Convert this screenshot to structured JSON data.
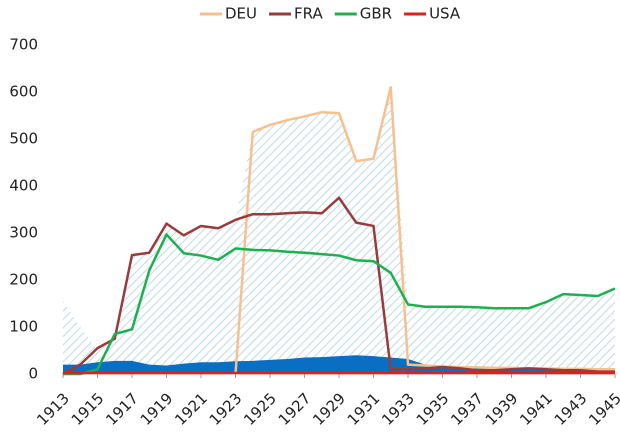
{
  "chart_data": {
    "type": "line",
    "x": [
      1913,
      1914,
      1915,
      1916,
      1917,
      1918,
      1919,
      1920,
      1921,
      1922,
      1923,
      1924,
      1925,
      1926,
      1927,
      1928,
      1929,
      1930,
      1931,
      1932,
      1933,
      1934,
      1935,
      1936,
      1937,
      1938,
      1939,
      1940,
      1941,
      1942,
      1943,
      1944,
      1945
    ],
    "xlim": [
      1913,
      1945
    ],
    "xticks": [
      1913,
      1915,
      1917,
      1919,
      1921,
      1923,
      1925,
      1927,
      1929,
      1931,
      1933,
      1935,
      1937,
      1939,
      1941,
      1943,
      1945
    ],
    "ylim": [
      0,
      700
    ],
    "yticks": [
      0,
      100,
      200,
      300,
      400,
      500,
      600,
      700
    ],
    "legend": "top",
    "areas": [
      {
        "color": "#bcd9e8",
        "pattern": "hatch",
        "values": [
          155,
          100,
          50,
          85,
          253,
          258,
          320,
          295,
          315,
          310,
          328,
          515,
          530,
          540,
          548,
          557,
          555,
          453,
          458,
          610,
          148,
          143,
          143,
          143,
          142,
          140,
          140,
          140,
          153,
          170,
          168,
          166,
          182
        ]
      },
      {
        "color": "#0a6fc2",
        "values": [
          20,
          20,
          25,
          28,
          28,
          20,
          18,
          22,
          25,
          25,
          27,
          28,
          30,
          32,
          35,
          36,
          38,
          40,
          38,
          35,
          32,
          20,
          18,
          15,
          14,
          12,
          12,
          12,
          12,
          10,
          10,
          8,
          8
        ]
      }
    ],
    "series": [
      {
        "name": "DEU",
        "color": "#f8c08e",
        "values": [
          null,
          null,
          null,
          null,
          null,
          null,
          null,
          null,
          null,
          null,
          0,
          515,
          530,
          540,
          548,
          557,
          555,
          453,
          458,
          610,
          20,
          18,
          16,
          15,
          14,
          13,
          13,
          12,
          12,
          11,
          11,
          10,
          10
        ]
      },
      {
        "name": "FRA",
        "color": "#9a3b3b",
        "values": [
          0,
          20,
          55,
          75,
          253,
          258,
          320,
          295,
          315,
          310,
          328,
          340,
          340,
          342,
          344,
          342,
          375,
          322,
          315,
          10,
          10,
          12,
          15,
          12,
          8,
          8,
          10,
          12,
          10,
          8,
          8,
          5,
          5
        ]
      },
      {
        "name": "GBR",
        "color": "#1db04f",
        "values": [
          0,
          0,
          10,
          85,
          95,
          220,
          297,
          257,
          252,
          243,
          267,
          264,
          263,
          260,
          258,
          255,
          252,
          242,
          240,
          215,
          148,
          143,
          143,
          143,
          142,
          140,
          140,
          140,
          153,
          170,
          168,
          166,
          182
        ]
      },
      {
        "name": "USA",
        "color": "#e0201b",
        "values": [
          2,
          2,
          2,
          2,
          2,
          2,
          2,
          2,
          2,
          2,
          2,
          2,
          2,
          2,
          2,
          2,
          2,
          2,
          2,
          2,
          2,
          2,
          2,
          2,
          2,
          2,
          2,
          2,
          2,
          2,
          2,
          2,
          2
        ]
      }
    ]
  }
}
